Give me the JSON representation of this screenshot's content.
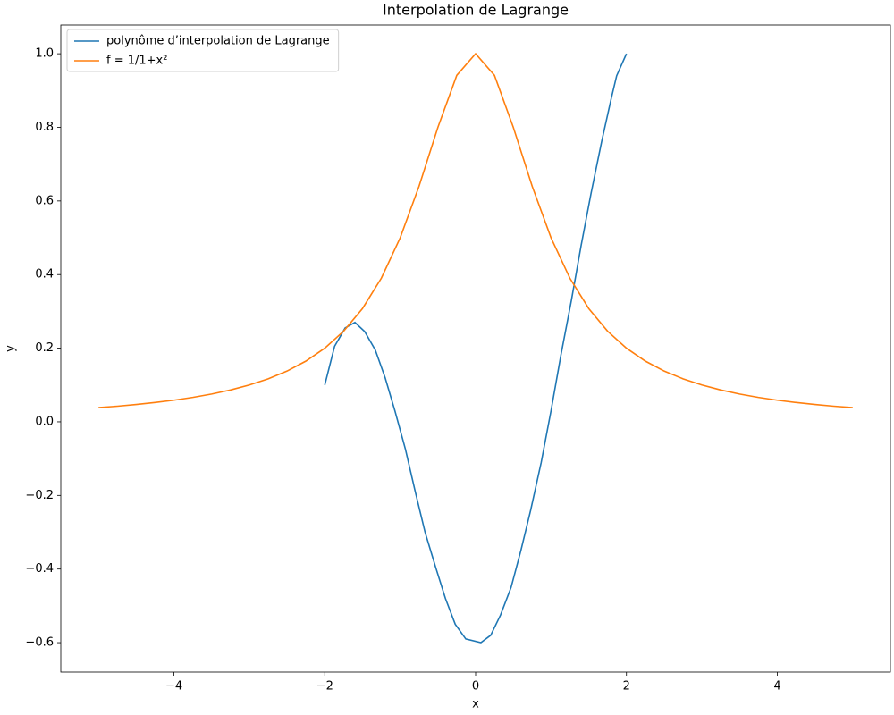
{
  "chart_data": {
    "type": "line",
    "title": "Interpolation de Lagrange",
    "x_label": "x",
    "y_label": "y",
    "xlim": [
      -5.5,
      5.5
    ],
    "ylim": [
      -0.68,
      1.078
    ],
    "xticks": [
      {
        "value": -4,
        "label": "−4"
      },
      {
        "value": -2,
        "label": "−2"
      },
      0,
      2,
      4
    ],
    "yticks": [
      {
        "value": -0.6,
        "label": "−0.6"
      },
      {
        "value": -0.4,
        "label": "−0.4"
      },
      {
        "value": -0.2,
        "label": "−0.2"
      },
      {
        "value": 0,
        "label": "0.0"
      },
      0.2,
      0.4,
      0.6,
      0.8,
      {
        "value": 1,
        "label": "1.0"
      }
    ],
    "grid": false,
    "legend": "upper left",
    "series": [
      {
        "name": "polynôme d’interpolation de Lagrange",
        "color": "#1f77b4",
        "x": [
          -2,
          -1.87,
          -1.73,
          -1.6,
          -1.47,
          -1.33,
          -1.2,
          -1.07,
          -0.93,
          -0.8,
          -0.67,
          -0.53,
          -0.4,
          -0.27,
          -0.13,
          0.07,
          0.2,
          0.33,
          0.47,
          0.6,
          0.73,
          0.87,
          1.0,
          1.13,
          1.27,
          1.4,
          1.53,
          1.67,
          1.8,
          1.87,
          2
        ],
        "values": [
          0.1,
          0.205,
          0.255,
          0.27,
          0.245,
          0.195,
          0.12,
          0.03,
          -0.075,
          -0.19,
          -0.3,
          -0.395,
          -0.48,
          -0.55,
          -0.59,
          -0.6,
          -0.58,
          -0.525,
          -0.45,
          -0.35,
          -0.24,
          -0.11,
          0.03,
          0.18,
          0.33,
          0.48,
          0.62,
          0.76,
          0.88,
          0.94,
          1.0
        ]
      },
      {
        "name": "f = 1/1+x²",
        "color": "#ff7f0e",
        "x": [
          -5,
          -4.75,
          -4.5,
          -4.25,
          -4,
          -3.75,
          -3.5,
          -3.25,
          -3,
          -2.75,
          -2.5,
          -2.25,
          -2,
          -1.75,
          -1.5,
          -1.25,
          -1,
          -0.75,
          -0.5,
          -0.25,
          0,
          0.25,
          0.5,
          0.75,
          1,
          1.25,
          1.5,
          1.75,
          2,
          2.25,
          2.5,
          2.75,
          3,
          3.25,
          3.5,
          3.75,
          4,
          4.25,
          4.5,
          4.75,
          5
        ],
        "values": [
          0.0385,
          0.0424,
          0.0471,
          0.0525,
          0.0588,
          0.0664,
          0.0755,
          0.0865,
          0.1,
          0.1168,
          0.1379,
          0.165,
          0.2,
          0.2462,
          0.3077,
          0.3902,
          0.5,
          0.64,
          0.8,
          0.9412,
          1,
          0.9412,
          0.8,
          0.64,
          0.5,
          0.3902,
          0.3077,
          0.2462,
          0.2,
          0.165,
          0.1379,
          0.1168,
          0.1,
          0.0865,
          0.0755,
          0.0664,
          0.0588,
          0.0525,
          0.0471,
          0.0424,
          0.0385
        ]
      }
    ]
  }
}
